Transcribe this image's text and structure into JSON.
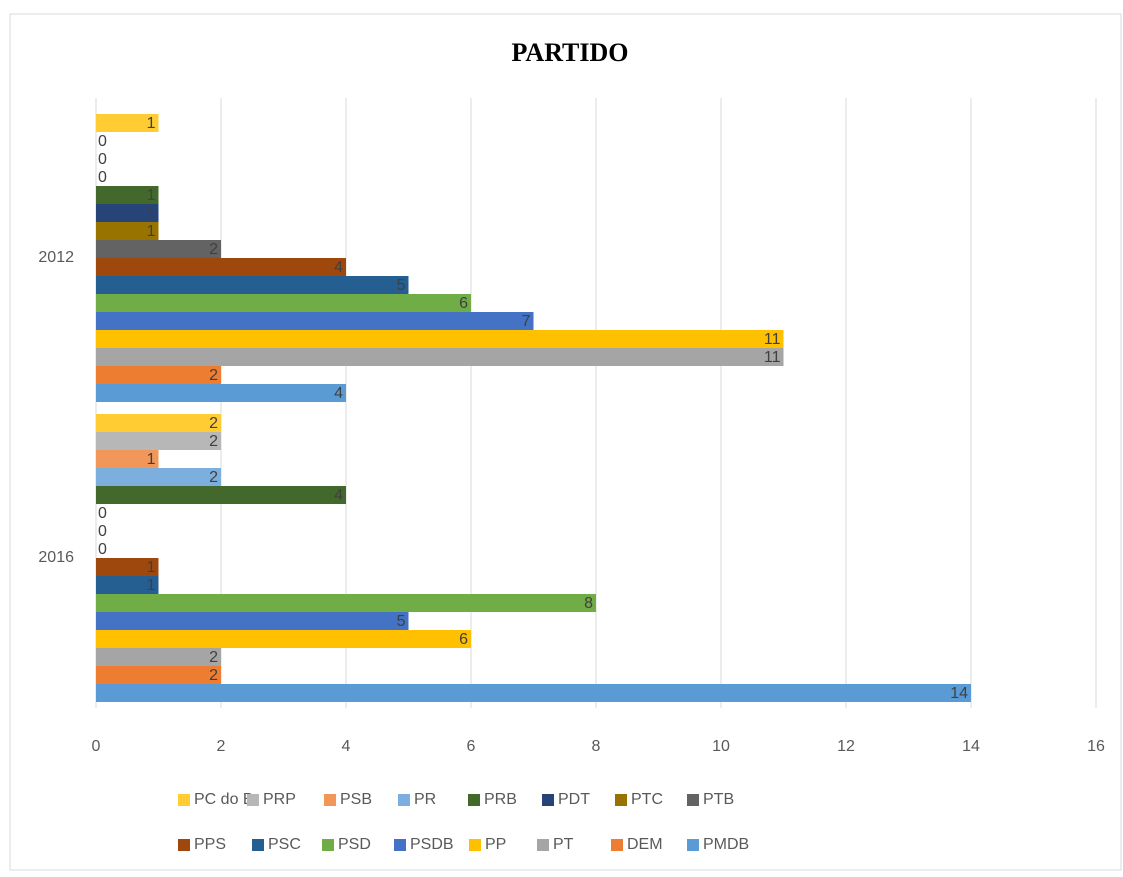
{
  "chart_data": {
    "type": "bar",
    "orientation": "horizontal",
    "title": "PARTIDO",
    "categories": [
      "2016",
      "2012"
    ],
    "series": [
      {
        "name": "PMDB",
        "color": "#5b9bd5",
        "values": [
          14,
          4
        ]
      },
      {
        "name": "DEM",
        "color": "#ed7d31",
        "values": [
          2,
          2
        ]
      },
      {
        "name": "PT",
        "color": "#a5a5a5",
        "values": [
          2,
          11
        ]
      },
      {
        "name": "PP",
        "color": "#ffc000",
        "values": [
          6,
          11
        ]
      },
      {
        "name": "PSDB",
        "color": "#4472c4",
        "values": [
          5,
          7
        ]
      },
      {
        "name": "PSD",
        "color": "#70ad47",
        "values": [
          8,
          6
        ]
      },
      {
        "name": "PSC",
        "color": "#255e91",
        "values": [
          1,
          5
        ]
      },
      {
        "name": "PPS",
        "color": "#9e480e",
        "values": [
          1,
          4
        ]
      },
      {
        "name": "PTB",
        "color": "#636363",
        "values": [
          0,
          2
        ]
      },
      {
        "name": "PTC",
        "color": "#997300",
        "values": [
          0,
          1
        ]
      },
      {
        "name": "PDT",
        "color": "#264478",
        "values": [
          0,
          1
        ]
      },
      {
        "name": "PRB",
        "color": "#43682b",
        "values": [
          4,
          1
        ]
      },
      {
        "name": "PR",
        "color": "#7cafdd",
        "values": [
          2,
          0
        ]
      },
      {
        "name": "PSB",
        "color": "#f1975a",
        "values": [
          1,
          0
        ]
      },
      {
        "name": "PRP",
        "color": "#b7b7b7",
        "values": [
          2,
          0
        ]
      },
      {
        "name": "PC do B",
        "color": "#ffcd33",
        "values": [
          2,
          1
        ]
      }
    ],
    "xlim": [
      0,
      16
    ],
    "xticks": [
      0,
      2,
      4,
      6,
      8,
      10,
      12,
      14,
      16
    ],
    "grid": true,
    "legend": "bottom"
  }
}
